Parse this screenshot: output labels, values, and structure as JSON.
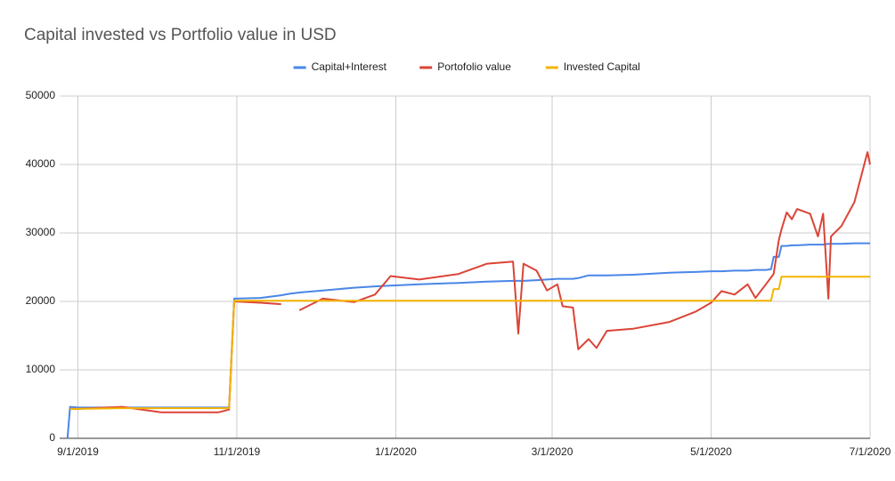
{
  "chart_data": {
    "type": "line",
    "title": "Capital invested vs Portfolio value in USD",
    "x": [
      "8/28/2019",
      "8/29/2019",
      "9/1/2019",
      "9/18/2019",
      "10/3/2019",
      "10/25/2019",
      "10/29/2019",
      "10/31/2019",
      "11/10/2019",
      "11/18/2019",
      "11/21/2019",
      "11/25/2019",
      "12/4/2019",
      "12/16/2019",
      "12/24/2019",
      "12/30/2019",
      "1/10/2020",
      "1/25/2020",
      "2/5/2020",
      "2/15/2020",
      "2/17/2020",
      "2/19/2020",
      "2/24/2020",
      "2/28/2020",
      "3/3/2020",
      "3/5/2020",
      "3/9/2020",
      "3/11/2020",
      "3/15/2020",
      "3/18/2020",
      "3/22/2020",
      "4/1/2020",
      "4/15/2020",
      "4/25/2020",
      "5/1/2020",
      "5/5/2020",
      "5/10/2020",
      "5/15/2020",
      "5/18/2020",
      "5/22/2020",
      "5/24/2020",
      "5/25/2020",
      "5/27/2020",
      "5/28/2020",
      "5/30/2020",
      "6/1/2020",
      "6/3/2020",
      "6/8/2020",
      "6/11/2020",
      "6/13/2020",
      "6/15/2020",
      "6/16/2020",
      "6/20/2020",
      "6/25/2020",
      "6/30/2020",
      "7/1/2020"
    ],
    "series": [
      {
        "name": "Capital+Interest",
        "color": "#4a86e8",
        "values": [
          0,
          4600,
          4500,
          4500,
          4500,
          4500,
          4500,
          20400,
          20500,
          20900,
          21100,
          21300,
          21600,
          22000,
          22200,
          22300,
          22500,
          22700,
          22900,
          23000,
          23000,
          23000,
          23100,
          23200,
          23300,
          23300,
          23300,
          23400,
          23800,
          23800,
          23800,
          23900,
          24200,
          24300,
          24400,
          24400,
          24500,
          24500,
          24600,
          24600,
          24700,
          26500,
          26500,
          28100,
          28100,
          28200,
          28200,
          28300,
          28300,
          28300,
          28400,
          28400,
          28400,
          28500,
          28500,
          28500
        ]
      },
      {
        "name": "Portofolio value",
        "color": "#db4437",
        "values": [
          null,
          4300,
          4300,
          4600,
          3800,
          3800,
          4200,
          20000,
          19800,
          19600,
          null,
          18700,
          20400,
          19900,
          21000,
          23700,
          23200,
          24000,
          25500,
          25800,
          15300,
          25500,
          24500,
          21600,
          22500,
          19300,
          19100,
          13000,
          14500,
          13200,
          15700,
          16000,
          17000,
          18500,
          19800,
          21500,
          21000,
          22500,
          20500,
          22500,
          23500,
          24000,
          29000,
          30500,
          33000,
          32000,
          33500,
          32800,
          29500,
          32800,
          20400,
          29500,
          31000,
          34500,
          41800,
          40000
        ]
      },
      {
        "name": "Invested Capital",
        "color": "#f4b400",
        "values": [
          null,
          4300,
          4300,
          4400,
          4400,
          4400,
          4400,
          20100,
          20100,
          20100,
          20100,
          20100,
          20100,
          20100,
          20100,
          20100,
          20100,
          20100,
          20100,
          20100,
          20100,
          20100,
          20100,
          20100,
          20100,
          20100,
          20100,
          20100,
          20100,
          20100,
          20100,
          20100,
          20100,
          20100,
          20100,
          20100,
          20100,
          20100,
          20100,
          20100,
          20100,
          21800,
          21800,
          23600,
          23600,
          23600,
          23600,
          23600,
          23600,
          23600,
          23600,
          23600,
          23600,
          23600,
          23600,
          23600
        ]
      }
    ],
    "xlim": [
      "8/25/2019",
      "7/1/2020"
    ],
    "xticks": [
      "9/1/2019",
      "11/1/2019",
      "1/1/2020",
      "3/1/2020",
      "5/1/2020",
      "7/1/2020"
    ],
    "ylim": [
      0,
      50000
    ],
    "yticks": [
      0,
      10000,
      20000,
      30000,
      40000,
      50000
    ],
    "grid": true,
    "legend": "top"
  }
}
